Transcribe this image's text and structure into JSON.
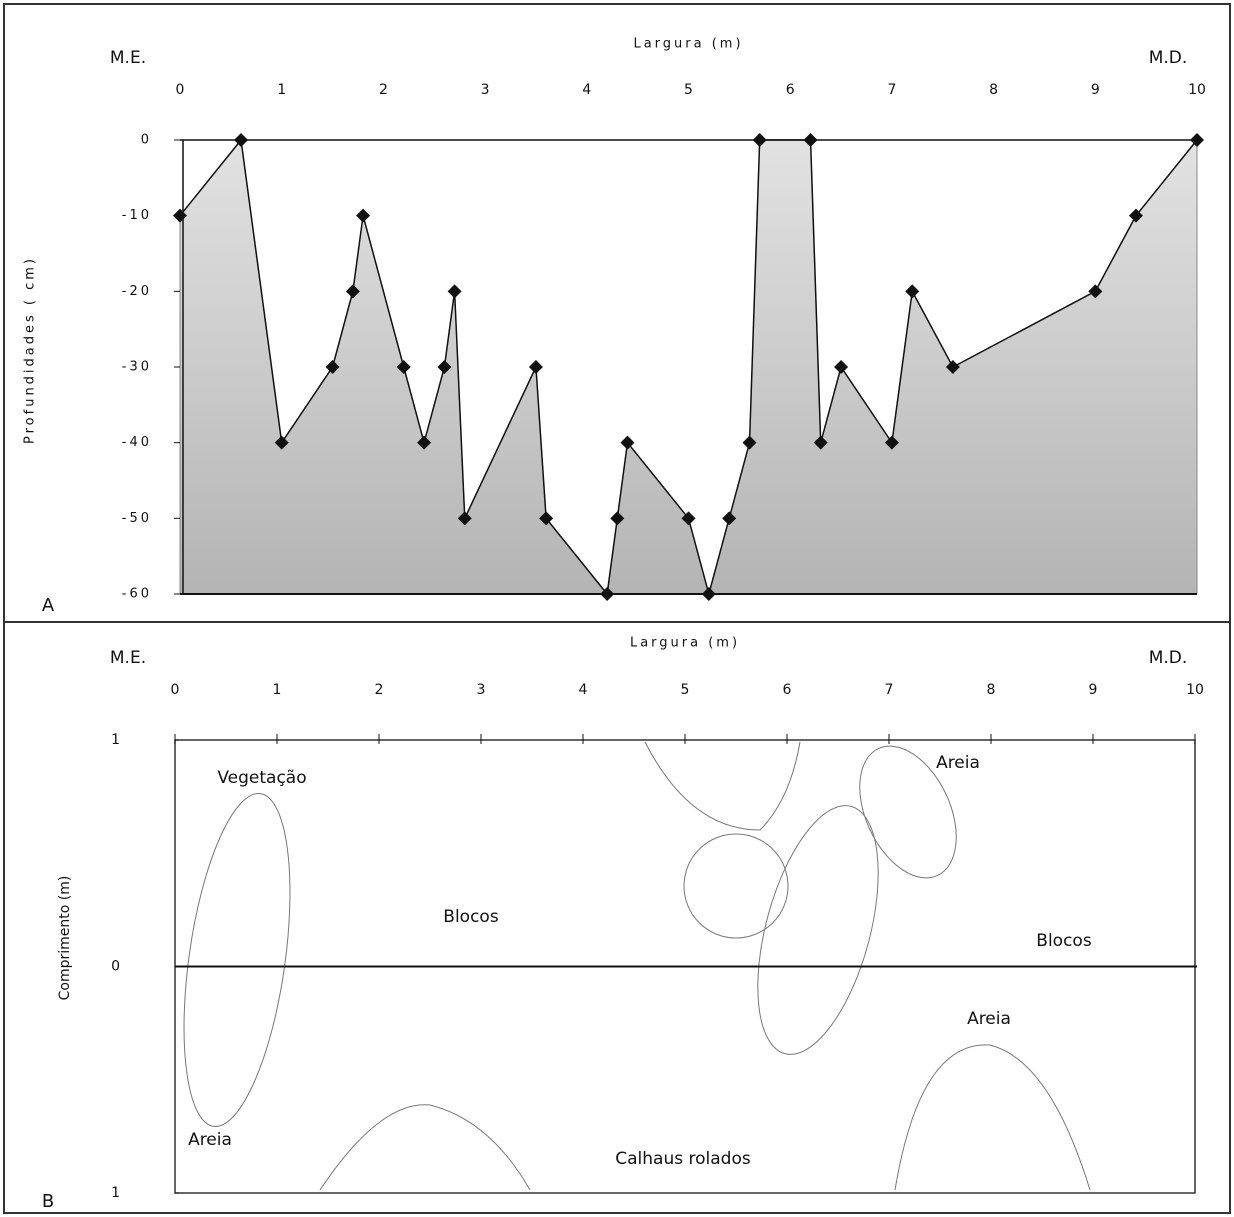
{
  "chart_data": [
    {
      "type": "area",
      "panel": "A",
      "x_label": "Largura (m)",
      "y_label": "Profundidades ( cm)",
      "left_label": "M.E.",
      "right_label": "M.D.",
      "x": [
        0,
        0.6,
        1.0,
        1.5,
        1.7,
        1.8,
        2.2,
        2.4,
        2.6,
        2.7,
        2.8,
        3.5,
        3.6,
        4.2,
        4.3,
        4.4,
        5.0,
        5.2,
        5.4,
        5.6,
        5.7,
        6.2,
        6.3,
        6.5,
        7.0,
        7.2,
        7.6,
        9.0,
        9.4,
        10.0
      ],
      "values": [
        -10,
        0,
        -40,
        -30,
        -20,
        -10,
        -30,
        -40,
        -30,
        -20,
        -50,
        -30,
        -50,
        -60,
        -50,
        -40,
        -50,
        -60,
        -50,
        -40,
        0,
        0,
        -40,
        -30,
        -40,
        -20,
        -30,
        -20,
        -10,
        0
      ],
      "color": "#c4c4c4",
      "line_color": "#111111",
      "xlim": [
        0,
        10
      ],
      "xticks": [
        0,
        1,
        2,
        3,
        4,
        5,
        6,
        7,
        8,
        9,
        10
      ],
      "ylim": [
        -60,
        0
      ],
      "yticks": [
        0,
        -10,
        -20,
        -30,
        -40,
        -50,
        -60
      ]
    },
    {
      "type": "sketch",
      "panel": "B",
      "x_label": "Largura (m)",
      "y_label": "Comprimento (m)",
      "left_label": "M.E.",
      "right_label": "M.D.",
      "xlim": [
        0,
        10
      ],
      "xticks": [
        0,
        1,
        2,
        3,
        4,
        5,
        6,
        7,
        8,
        9,
        10
      ],
      "ylim": [
        -1,
        1
      ],
      "yticks": [
        1,
        0,
        {
          "value": -1,
          "label": "1"
        }
      ],
      "annotations": [
        "Vegetação",
        "Areia",
        "Blocos",
        "Blocos",
        "Areia",
        "Areia",
        "Calhaus rolados"
      ]
    }
  ]
}
